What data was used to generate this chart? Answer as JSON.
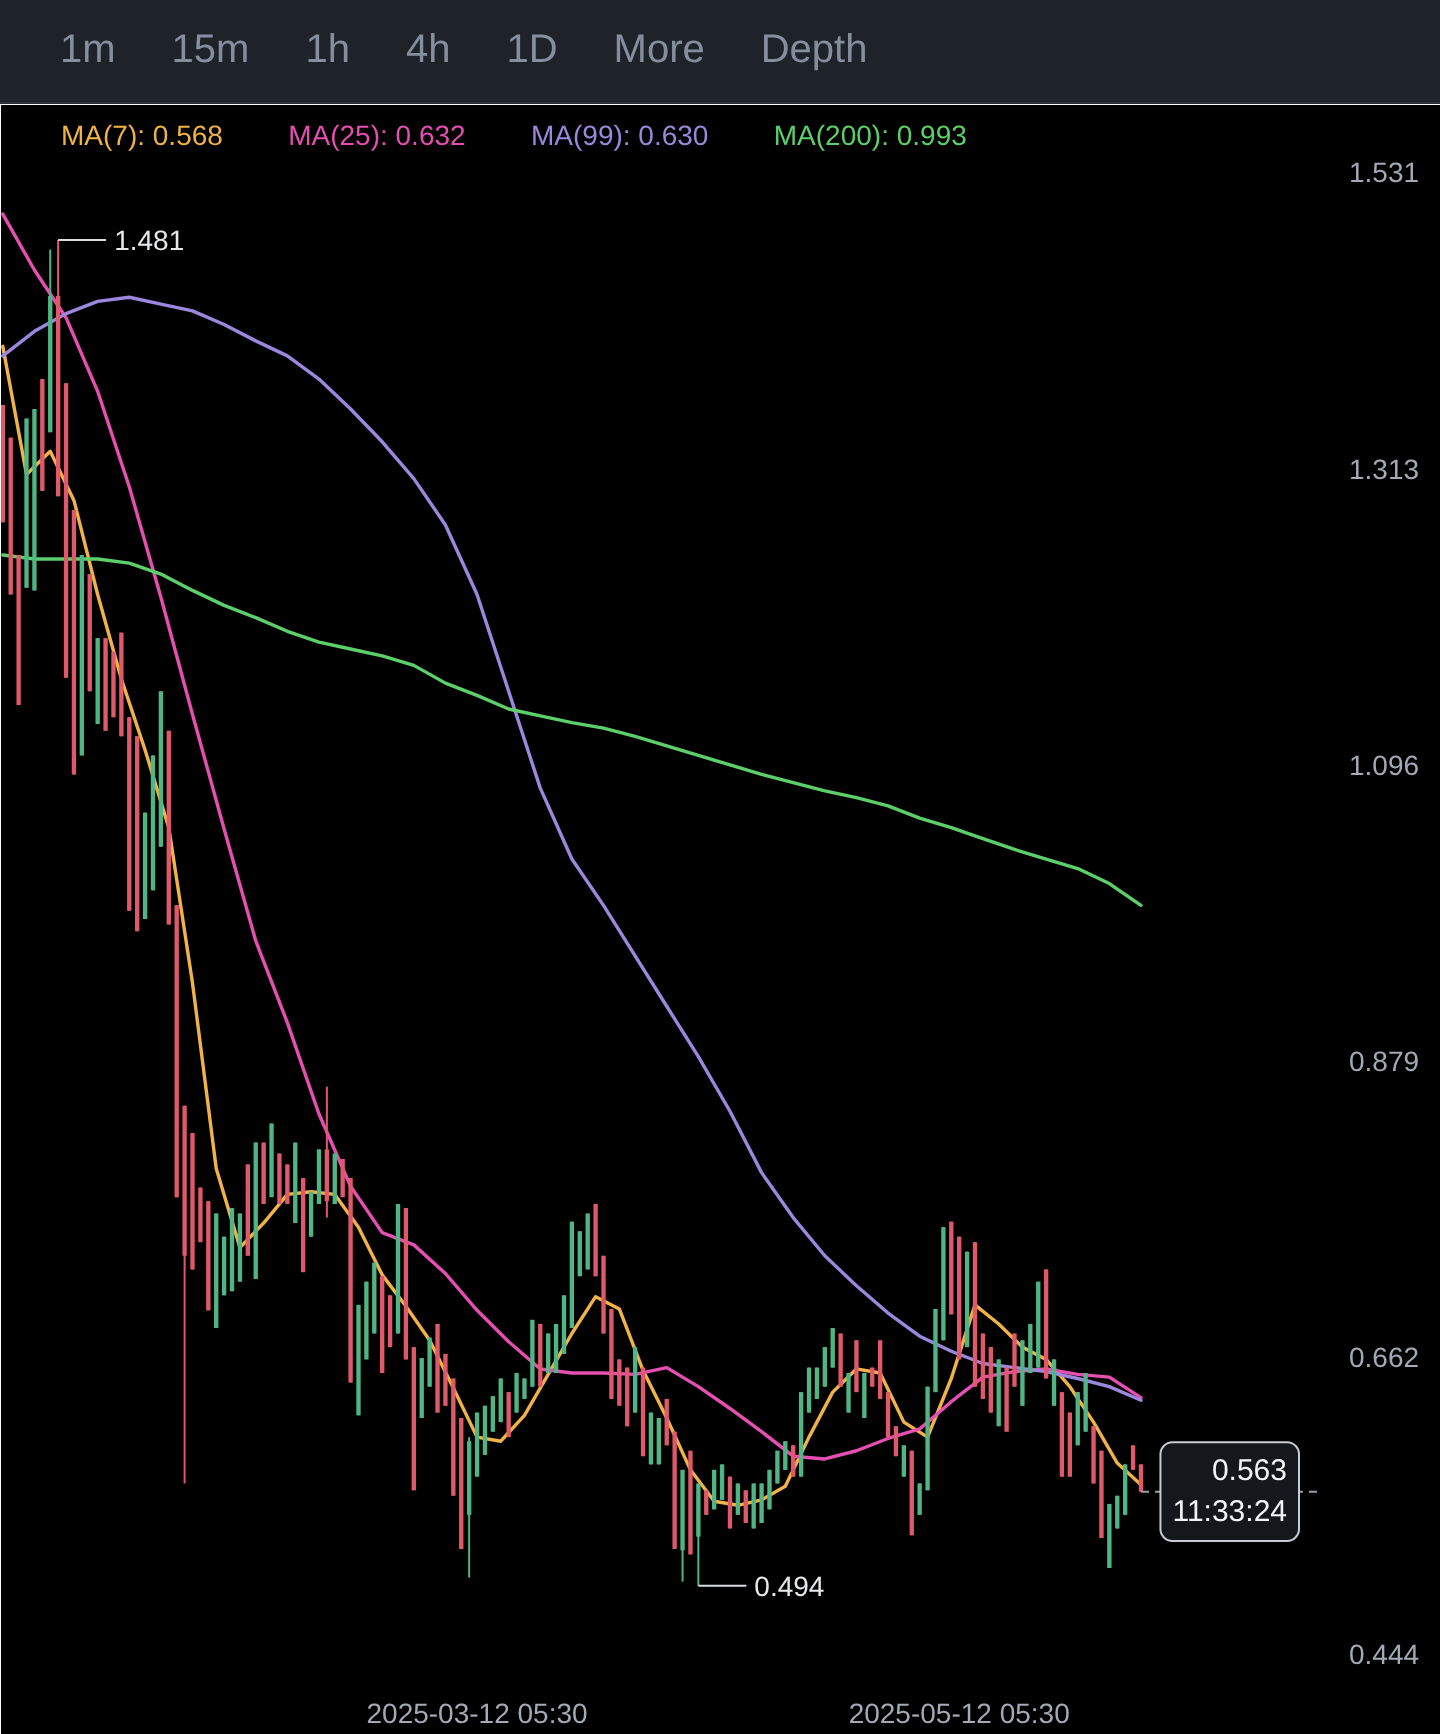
{
  "chart_data": {
    "type": "candlestick",
    "x": [
      "2025-01-11T05:30",
      "2025-01-12T05:30",
      "2025-01-13T05:30",
      "2025-01-14T05:30",
      "2025-01-15T05:30",
      "2025-01-16T05:30",
      "2025-01-17T05:30",
      "2025-01-18T05:30",
      "2025-01-19T05:30",
      "2025-01-20T05:30",
      "2025-01-21T05:30",
      "2025-01-22T05:30",
      "2025-01-23T05:30",
      "2025-01-24T05:30",
      "2025-01-25T05:30",
      "2025-01-26T05:30",
      "2025-01-27T05:30",
      "2025-01-28T05:30",
      "2025-01-29T05:30",
      "2025-01-30T05:30",
      "2025-01-31T05:30",
      "2025-02-01T05:30",
      "2025-02-02T05:30",
      "2025-02-03T05:30",
      "2025-02-04T05:30",
      "2025-02-05T05:30",
      "2025-02-06T05:30",
      "2025-02-07T05:30",
      "2025-02-08T05:30",
      "2025-02-09T05:30",
      "2025-02-10T05:30",
      "2025-02-11T05:30",
      "2025-02-12T05:30",
      "2025-02-13T05:30",
      "2025-02-14T05:30",
      "2025-02-15T05:30",
      "2025-02-16T05:30",
      "2025-02-17T05:30",
      "2025-02-18T05:30",
      "2025-02-19T05:30",
      "2025-02-20T05:30",
      "2025-02-21T05:30",
      "2025-02-22T05:30",
      "2025-02-23T05:30",
      "2025-02-24T05:30",
      "2025-02-25T05:30",
      "2025-02-26T05:30",
      "2025-02-27T05:30",
      "2025-02-28T05:30",
      "2025-03-01T05:30",
      "2025-03-02T05:30",
      "2025-03-03T05:30",
      "2025-03-04T05:30",
      "2025-03-05T05:30",
      "2025-03-06T05:30",
      "2025-03-07T05:30",
      "2025-03-08T05:30",
      "2025-03-09T05:30",
      "2025-03-10T05:30",
      "2025-03-11T05:30",
      "2025-03-12T05:30",
      "2025-03-13T05:30",
      "2025-03-14T05:30",
      "2025-03-15T05:30",
      "2025-03-16T05:30",
      "2025-03-17T05:30",
      "2025-03-18T05:30",
      "2025-03-19T05:30",
      "2025-03-20T05:30",
      "2025-03-21T05:30",
      "2025-03-22T05:30",
      "2025-03-23T05:30",
      "2025-03-24T05:30",
      "2025-03-25T05:30",
      "2025-03-26T05:30",
      "2025-03-27T05:30",
      "2025-03-28T05:30",
      "2025-03-29T05:30",
      "2025-03-30T05:30",
      "2025-03-31T05:30",
      "2025-04-01T05:30",
      "2025-04-02T05:30",
      "2025-04-03T05:30",
      "2025-04-04T05:30",
      "2025-04-05T05:30",
      "2025-04-06T05:30",
      "2025-04-07T05:30",
      "2025-04-08T05:30",
      "2025-04-09T05:30",
      "2025-04-10T05:30",
      "2025-04-11T05:30",
      "2025-04-12T05:30",
      "2025-04-13T05:30",
      "2025-04-14T05:30",
      "2025-04-15T05:30",
      "2025-04-16T05:30",
      "2025-04-17T05:30",
      "2025-04-18T05:30",
      "2025-04-19T05:30",
      "2025-04-20T05:30",
      "2025-04-21T05:30",
      "2025-04-22T05:30",
      "2025-04-23T05:30",
      "2025-04-24T05:30",
      "2025-04-25T05:30",
      "2025-04-26T05:30",
      "2025-04-27T05:30",
      "2025-04-28T05:30",
      "2025-04-29T05:30",
      "2025-04-30T05:30",
      "2025-05-01T05:30",
      "2025-05-02T05:30",
      "2025-05-03T05:30",
      "2025-05-04T05:30",
      "2025-05-05T05:30",
      "2025-05-06T05:30",
      "2025-05-07T05:30",
      "2025-05-08T05:30",
      "2025-05-09T05:30",
      "2025-05-10T05:30",
      "2025-05-11T05:30",
      "2025-05-12T05:30",
      "2025-05-13T05:30",
      "2025-05-14T05:30",
      "2025-05-15T05:30",
      "2025-05-16T05:30",
      "2025-05-17T05:30",
      "2025-05-18T05:30",
      "2025-05-19T05:30",
      "2025-05-20T05:30",
      "2025-05-21T05:30",
      "2025-05-22T05:30",
      "2025-05-23T05:30",
      "2025-05-24T05:30",
      "2025-05-25T05:30",
      "2025-05-26T05:30",
      "2025-05-27T05:30",
      "2025-05-28T05:30",
      "2025-05-29T05:30",
      "2025-05-30T05:30",
      "2025-05-31T05:30",
      "2025-06-01T05:30",
      "2025-06-02T05:30",
      "2025-06-03T05:30",
      "2025-06-04T05:30"
    ],
    "ohlc": [
      [
        1.36,
        1.36,
        1.274,
        1.274
      ],
      [
        1.336,
        1.336,
        1.221,
        1.221
      ],
      [
        1.25,
        1.25,
        1.14,
        1.14
      ],
      [
        1.226,
        1.35,
        1.226,
        1.35
      ],
      [
        1.224,
        1.357,
        1.224,
        1.357
      ],
      [
        1.379,
        1.379,
        1.297,
        1.297
      ],
      [
        1.34,
        1.474,
        1.34,
        1.44
      ],
      [
        1.44,
        1.481,
        1.293,
        1.293
      ],
      [
        1.376,
        1.376,
        1.16,
        1.16
      ],
      [
        1.283,
        1.283,
        1.089,
        1.089
      ],
      [
        1.103,
        1.25,
        1.103,
        1.25
      ],
      [
        1.236,
        1.236,
        1.15,
        1.15
      ],
      [
        1.126,
        1.189,
        1.126,
        1.189
      ],
      [
        1.189,
        1.189,
        1.121,
        1.121
      ],
      [
        1.179,
        1.179,
        1.131,
        1.131
      ],
      [
        1.193,
        1.193,
        1.117,
        1.117
      ],
      [
        1.131,
        1.131,
        0.989,
        0.989
      ],
      [
        1.117,
        1.117,
        0.974,
        0.974
      ],
      [
        0.983,
        1.061,
        0.983,
        1.061
      ],
      [
        1.004,
        1.103,
        1.004,
        1.103
      ],
      [
        1.036,
        1.15,
        1.036,
        1.15
      ],
      [
        1.121,
        1.121,
        0.979,
        0.979
      ],
      [
        0.993,
        0.993,
        0.779,
        0.779
      ],
      [
        0.846,
        0.846,
        0.569,
        0.736
      ],
      [
        0.826,
        0.826,
        0.726,
        0.726
      ],
      [
        0.786,
        0.786,
        0.746,
        0.746
      ],
      [
        0.776,
        0.776,
        0.696,
        0.696
      ],
      [
        0.683,
        0.767,
        0.683,
        0.767
      ],
      [
        0.707,
        0.75,
        0.707,
        0.75
      ],
      [
        0.71,
        0.771,
        0.71,
        0.771
      ],
      [
        0.717,
        0.767,
        0.717,
        0.767
      ],
      [
        0.803,
        0.803,
        0.736,
        0.736
      ],
      [
        0.719,
        0.819,
        0.719,
        0.819
      ],
      [
        0.819,
        0.819,
        0.774,
        0.774
      ],
      [
        0.779,
        0.833,
        0.779,
        0.833
      ],
      [
        0.811,
        0.811,
        0.774,
        0.774
      ],
      [
        0.803,
        0.803,
        0.774,
        0.774
      ],
      [
        0.76,
        0.819,
        0.76,
        0.819
      ],
      [
        0.793,
        0.793,
        0.724,
        0.724
      ],
      [
        0.75,
        0.783,
        0.75,
        0.783
      ],
      [
        0.774,
        0.814,
        0.774,
        0.814
      ],
      [
        0.814,
        0.86,
        0.764,
        0.776
      ],
      [
        0.774,
        0.811,
        0.774,
        0.811
      ],
      [
        0.807,
        0.807,
        0.779,
        0.779
      ],
      [
        0.793,
        0.793,
        0.643,
        0.643
      ],
      [
        0.619,
        0.7,
        0.619,
        0.7
      ],
      [
        0.66,
        0.717,
        0.66,
        0.717
      ],
      [
        0.679,
        0.731,
        0.679,
        0.731
      ],
      [
        0.721,
        0.721,
        0.65,
        0.65
      ],
      [
        0.707,
        0.707,
        0.669,
        0.669
      ],
      [
        0.679,
        0.774,
        0.679,
        0.774
      ],
      [
        0.771,
        0.771,
        0.66,
        0.66
      ],
      [
        0.669,
        0.669,
        0.564,
        0.564
      ],
      [
        0.617,
        0.661,
        0.617,
        0.661
      ],
      [
        0.64,
        0.676,
        0.64,
        0.676
      ],
      [
        0.686,
        0.686,
        0.621,
        0.621
      ],
      [
        0.664,
        0.664,
        0.626,
        0.626
      ],
      [
        0.646,
        0.646,
        0.56,
        0.56
      ],
      [
        0.617,
        0.617,
        0.521,
        0.521
      ],
      [
        0.546,
        0.603,
        0.5,
        0.6
      ],
      [
        0.574,
        0.621,
        0.574,
        0.621
      ],
      [
        0.59,
        0.626,
        0.59,
        0.626
      ],
      [
        0.607,
        0.633,
        0.607,
        0.633
      ],
      [
        0.614,
        0.646,
        0.614,
        0.646
      ],
      [
        0.636,
        0.636,
        0.603,
        0.603
      ],
      [
        0.621,
        0.65,
        0.621,
        0.65
      ],
      [
        0.631,
        0.646,
        0.631,
        0.646
      ],
      [
        0.64,
        0.689,
        0.64,
        0.689
      ],
      [
        0.686,
        0.686,
        0.64,
        0.64
      ],
      [
        0.65,
        0.679,
        0.65,
        0.679
      ],
      [
        0.65,
        0.686,
        0.65,
        0.686
      ],
      [
        0.664,
        0.707,
        0.664,
        0.707
      ],
      [
        0.683,
        0.761,
        0.683,
        0.761
      ],
      [
        0.721,
        0.754,
        0.721,
        0.754
      ],
      [
        0.726,
        0.767,
        0.726,
        0.767
      ],
      [
        0.774,
        0.774,
        0.721,
        0.721
      ],
      [
        0.736,
        0.736,
        0.679,
        0.679
      ],
      [
        0.697,
        0.697,
        0.631,
        0.631
      ],
      [
        0.66,
        0.66,
        0.626,
        0.626
      ],
      [
        0.654,
        0.654,
        0.611,
        0.611
      ],
      [
        0.621,
        0.669,
        0.621,
        0.669
      ],
      [
        0.654,
        0.654,
        0.589,
        0.589
      ],
      [
        0.583,
        0.621,
        0.583,
        0.621
      ],
      [
        0.583,
        0.617,
        0.583,
        0.617
      ],
      [
        0.631,
        0.631,
        0.597,
        0.597
      ],
      [
        0.607,
        0.607,
        0.521,
        0.521
      ],
      [
        0.52,
        0.579,
        0.497,
        0.579
      ],
      [
        0.593,
        0.593,
        0.517,
        0.517
      ],
      [
        0.53,
        0.569,
        0.494,
        0.569
      ],
      [
        0.564,
        0.564,
        0.546,
        0.546
      ],
      [
        0.55,
        0.579,
        0.55,
        0.579
      ],
      [
        0.557,
        0.583,
        0.557,
        0.583
      ],
      [
        0.574,
        0.574,
        0.536,
        0.536
      ],
      [
        0.546,
        0.569,
        0.546,
        0.569
      ],
      [
        0.564,
        0.564,
        0.54,
        0.54
      ],
      [
        0.536,
        0.569,
        0.536,
        0.569
      ],
      [
        0.54,
        0.569,
        0.54,
        0.569
      ],
      [
        0.55,
        0.579,
        0.55,
        0.579
      ],
      [
        0.569,
        0.593,
        0.569,
        0.593
      ],
      [
        0.579,
        0.6,
        0.579,
        0.6
      ],
      [
        0.597,
        0.597,
        0.574,
        0.574
      ],
      [
        0.574,
        0.636,
        0.574,
        0.636
      ],
      [
        0.621,
        0.654,
        0.621,
        0.654
      ],
      [
        0.631,
        0.654,
        0.631,
        0.654
      ],
      [
        0.64,
        0.669,
        0.64,
        0.669
      ],
      [
        0.654,
        0.683,
        0.654,
        0.683
      ],
      [
        0.679,
        0.679,
        0.64,
        0.64
      ],
      [
        0.621,
        0.65,
        0.621,
        0.65
      ],
      [
        0.674,
        0.674,
        0.636,
        0.636
      ],
      [
        0.617,
        0.65,
        0.617,
        0.65
      ],
      [
        0.654,
        0.654,
        0.64,
        0.64
      ],
      [
        0.674,
        0.674,
        0.631,
        0.631
      ],
      [
        0.636,
        0.636,
        0.603,
        0.603
      ],
      [
        0.611,
        0.611,
        0.589,
        0.589
      ],
      [
        0.574,
        0.597,
        0.574,
        0.597
      ],
      [
        0.593,
        0.593,
        0.531,
        0.531
      ],
      [
        0.546,
        0.569,
        0.546,
        0.569
      ],
      [
        0.564,
        0.64,
        0.564,
        0.64
      ],
      [
        0.636,
        0.697,
        0.636,
        0.697
      ],
      [
        0.674,
        0.757,
        0.674,
        0.757
      ],
      [
        0.761,
        0.761,
        0.693,
        0.693
      ],
      [
        0.75,
        0.75,
        0.66,
        0.66
      ],
      [
        0.669,
        0.739,
        0.669,
        0.739
      ],
      [
        0.746,
        0.746,
        0.64,
        0.64
      ],
      [
        0.679,
        0.679,
        0.631,
        0.631
      ],
      [
        0.669,
        0.669,
        0.621,
        0.621
      ],
      [
        0.611,
        0.66,
        0.611,
        0.66
      ],
      [
        0.654,
        0.654,
        0.607,
        0.607
      ],
      [
        0.679,
        0.679,
        0.64,
        0.64
      ],
      [
        0.626,
        0.674,
        0.626,
        0.674
      ],
      [
        0.65,
        0.686,
        0.65,
        0.686
      ],
      [
        0.654,
        0.717,
        0.654,
        0.717
      ],
      [
        0.726,
        0.726,
        0.646,
        0.646
      ],
      [
        0.626,
        0.66,
        0.626,
        0.66
      ],
      [
        0.636,
        0.636,
        0.574,
        0.574
      ],
      [
        0.621,
        0.621,
        0.574,
        0.574
      ],
      [
        0.597,
        0.636,
        0.597,
        0.636
      ],
      [
        0.607,
        0.65,
        0.607,
        0.65
      ],
      [
        0.611,
        0.611,
        0.569,
        0.569
      ],
      [
        0.593,
        0.593,
        0.529,
        0.529
      ],
      [
        0.507,
        0.554,
        0.507,
        0.554
      ],
      [
        0.536,
        0.56,
        0.536,
        0.56
      ],
      [
        0.546,
        0.583,
        0.546,
        0.583
      ],
      [
        0.597,
        0.597,
        0.579,
        0.579
      ],
      [
        0.583,
        0.583,
        0.563,
        0.563
      ]
    ],
    "colors": [
      "#e0596a",
      "#e0596a",
      "#e0596a",
      "#4fb584",
      "#4fb584",
      "#e0596a",
      "#4fb584",
      "#e0596a",
      "#e0596a",
      "#e0596a",
      "#4fb584",
      "#e0596a",
      "#4fb584",
      "#e0596a",
      "#e0596a",
      "#e0596a",
      "#e0596a",
      "#e0596a",
      "#4fb584",
      "#4fb584",
      "#4fb584",
      "#e0596a",
      "#e0596a",
      "#e0596a",
      "#e0596a",
      "#e0596a",
      "#e0596a",
      "#4fb584",
      "#4fb584",
      "#4fb584",
      "#4fb584",
      "#e0596a",
      "#4fb584",
      "#e0596a",
      "#4fb584",
      "#e0596a",
      "#e0596a",
      "#4fb584",
      "#e0596a",
      "#4fb584",
      "#4fb584",
      "#e0596a",
      "#4fb584",
      "#e0596a",
      "#e0596a",
      "#4fb584",
      "#4fb584",
      "#4fb584",
      "#e0596a",
      "#e0596a",
      "#4fb584",
      "#e0596a",
      "#e0596a",
      "#4fb584",
      "#4fb584",
      "#e0596a",
      "#e0596a",
      "#e0596a",
      "#e0596a",
      "#4fb584",
      "#4fb584",
      "#4fb584",
      "#4fb584",
      "#4fb584",
      "#e0596a",
      "#4fb584",
      "#4fb584",
      "#4fb584",
      "#e0596a",
      "#4fb584",
      "#4fb584",
      "#4fb584",
      "#4fb584",
      "#4fb584",
      "#4fb584",
      "#e0596a",
      "#e0596a",
      "#e0596a",
      "#e0596a",
      "#e0596a",
      "#4fb584",
      "#e0596a",
      "#4fb584",
      "#4fb584",
      "#e0596a",
      "#e0596a",
      "#4fb584",
      "#e0596a",
      "#4fb584",
      "#e0596a",
      "#4fb584",
      "#4fb584",
      "#e0596a",
      "#4fb584",
      "#e0596a",
      "#4fb584",
      "#4fb584",
      "#4fb584",
      "#4fb584",
      "#4fb584",
      "#e0596a",
      "#4fb584",
      "#4fb584",
      "#4fb584",
      "#4fb584",
      "#4fb584",
      "#e0596a",
      "#4fb584",
      "#e0596a",
      "#4fb584",
      "#e0596a",
      "#e0596a",
      "#e0596a",
      "#e0596a",
      "#4fb584",
      "#e0596a",
      "#4fb584",
      "#4fb584",
      "#4fb584",
      "#4fb584",
      "#e0596a",
      "#e0596a",
      "#4fb584",
      "#e0596a",
      "#e0596a",
      "#e0596a",
      "#4fb584",
      "#e0596a",
      "#e0596a",
      "#4fb584",
      "#4fb584",
      "#4fb584",
      "#e0596a",
      "#4fb584",
      "#e0596a",
      "#e0596a",
      "#4fb584",
      "#4fb584",
      "#e0596a",
      "#e0596a",
      "#4fb584",
      "#4fb584",
      "#4fb584",
      "#e0596a",
      "#e0596a"
    ],
    "series": [
      {
        "type": "line",
        "name": "MA(7): 0.568",
        "color": "#f0b347",
        "x": [
          "2025-01-11T05:30",
          "2025-01-14T05:30",
          "2025-01-17T05:30",
          "2025-01-20T05:30",
          "2025-01-23T05:30",
          "2025-01-26T05:30",
          "2025-01-29T05:30",
          "2025-02-01T05:30",
          "2025-02-04T05:30",
          "2025-02-07T05:30",
          "2025-02-10T05:30",
          "2025-02-13T05:30",
          "2025-02-16T05:30",
          "2025-02-19T05:30",
          "2025-02-22T05:30",
          "2025-02-25T05:30",
          "2025-02-28T05:30",
          "2025-03-03T05:30",
          "2025-03-06T05:30",
          "2025-03-09T05:30",
          "2025-03-12T05:30",
          "2025-03-15T05:30",
          "2025-03-18T05:30",
          "2025-03-21T05:30",
          "2025-03-24T05:30",
          "2025-03-27T05:30",
          "2025-03-30T05:30",
          "2025-04-02T05:30",
          "2025-04-05T05:30",
          "2025-04-08T05:30",
          "2025-04-11T05:30",
          "2025-04-14T05:30",
          "2025-04-17T05:30",
          "2025-04-20T05:30",
          "2025-04-23T05:30",
          "2025-04-26T05:30",
          "2025-04-29T05:30",
          "2025-05-02T05:30",
          "2025-05-05T05:30",
          "2025-05-08T05:30",
          "2025-05-11T05:30",
          "2025-05-14T05:30",
          "2025-05-17T05:30",
          "2025-05-20T05:30",
          "2025-05-23T05:30",
          "2025-05-26T05:30",
          "2025-05-29T05:30",
          "2025-06-01T05:30",
          "2025-06-04T05:30"
        ],
        "values": [
          1.403,
          1.309,
          1.326,
          1.29,
          1.221,
          1.159,
          1.107,
          1.05,
          0.936,
          0.8,
          0.742,
          0.76,
          0.781,
          0.783,
          0.781,
          0.757,
          0.722,
          0.699,
          0.674,
          0.639,
          0.603,
          0.6,
          0.619,
          0.649,
          0.679,
          0.706,
          0.697,
          0.652,
          0.617,
          0.579,
          0.556,
          0.553,
          0.557,
          0.567,
          0.603,
          0.636,
          0.653,
          0.65,
          0.614,
          0.603,
          0.646,
          0.7,
          0.686,
          0.669,
          0.66,
          0.64,
          0.614,
          0.584,
          0.568
        ]
      },
      {
        "type": "line",
        "name": "MA(25): 0.632",
        "color": "#e44fb1",
        "x": [
          "2025-01-11T05:30",
          "2025-01-15T05:30",
          "2025-01-19T05:30",
          "2025-01-23T05:30",
          "2025-01-27T05:30",
          "2025-01-31T05:30",
          "2025-02-04T05:30",
          "2025-02-08T05:30",
          "2025-02-12T05:30",
          "2025-02-16T05:30",
          "2025-02-20T05:30",
          "2025-02-24T05:30",
          "2025-02-28T05:30",
          "2025-03-04T05:30",
          "2025-03-08T05:30",
          "2025-03-12T05:30",
          "2025-03-16T05:30",
          "2025-03-20T05:30",
          "2025-03-24T05:30",
          "2025-03-28T05:30",
          "2025-04-01T05:30",
          "2025-04-05T05:30",
          "2025-04-09T05:30",
          "2025-04-13T05:30",
          "2025-04-17T05:30",
          "2025-04-21T05:30",
          "2025-04-25T05:30",
          "2025-04-29T05:30",
          "2025-05-03T05:30",
          "2025-05-07T05:30",
          "2025-05-11T05:30",
          "2025-05-15T05:30",
          "2025-05-19T05:30",
          "2025-05-23T05:30",
          "2025-05-27T05:30",
          "2025-05-31T05:30",
          "2025-06-04T05:30"
        ],
        "values": [
          1.5,
          1.459,
          1.424,
          1.37,
          1.3,
          1.219,
          1.133,
          1.049,
          0.967,
          0.907,
          0.84,
          0.787,
          0.753,
          0.744,
          0.723,
          0.696,
          0.673,
          0.653,
          0.65,
          0.65,
          0.649,
          0.654,
          0.64,
          0.624,
          0.607,
          0.589,
          0.587,
          0.593,
          0.602,
          0.609,
          0.629,
          0.647,
          0.651,
          0.653,
          0.649,
          0.647,
          0.632
        ]
      },
      {
        "type": "line",
        "name": "MA(99): 0.630",
        "color": "#9b87dc",
        "x": [
          "2025-01-11T05:30",
          "2025-01-15T05:30",
          "2025-01-19T05:30",
          "2025-01-23T05:30",
          "2025-01-27T05:30",
          "2025-01-31T05:30",
          "2025-02-04T05:30",
          "2025-02-08T05:30",
          "2025-02-12T05:30",
          "2025-02-16T05:30",
          "2025-02-20T05:30",
          "2025-02-24T05:30",
          "2025-02-28T05:30",
          "2025-03-04T05:30",
          "2025-03-08T05:30",
          "2025-03-12T05:30",
          "2025-03-16T05:30",
          "2025-03-20T05:30",
          "2025-03-24T05:30",
          "2025-03-28T05:30",
          "2025-04-01T05:30",
          "2025-04-05T05:30",
          "2025-04-09T05:30",
          "2025-04-13T05:30",
          "2025-04-17T05:30",
          "2025-04-21T05:30",
          "2025-04-25T05:30",
          "2025-04-29T05:30",
          "2025-05-03T05:30",
          "2025-05-07T05:30",
          "2025-05-11T05:30",
          "2025-05-15T05:30",
          "2025-05-19T05:30",
          "2025-05-23T05:30",
          "2025-05-27T05:30",
          "2025-05-31T05:30",
          "2025-06-04T05:30"
        ],
        "values": [
          1.396,
          1.414,
          1.427,
          1.436,
          1.439,
          1.434,
          1.429,
          1.419,
          1.407,
          1.396,
          1.379,
          1.357,
          1.333,
          1.306,
          1.272,
          1.221,
          1.15,
          1.079,
          1.027,
          0.993,
          0.956,
          0.919,
          0.882,
          0.842,
          0.797,
          0.764,
          0.736,
          0.714,
          0.694,
          0.677,
          0.666,
          0.657,
          0.654,
          0.651,
          0.646,
          0.64,
          0.63
        ]
      },
      {
        "type": "line",
        "name": "MA(200): 0.993",
        "color": "#5ccf6b",
        "x": [
          "2025-01-11T05:30",
          "2025-01-15T05:30",
          "2025-01-19T05:30",
          "2025-01-23T05:30",
          "2025-01-27T05:30",
          "2025-01-31T05:30",
          "2025-02-04T05:30",
          "2025-02-08T05:30",
          "2025-02-12T05:30",
          "2025-02-16T05:30",
          "2025-02-20T05:30",
          "2025-02-24T05:30",
          "2025-02-28T05:30",
          "2025-03-04T05:30",
          "2025-03-08T05:30",
          "2025-03-12T05:30",
          "2025-03-16T05:30",
          "2025-03-20T05:30",
          "2025-03-24T05:30",
          "2025-03-28T05:30",
          "2025-04-01T05:30",
          "2025-04-05T05:30",
          "2025-04-09T05:30",
          "2025-04-13T05:30",
          "2025-04-17T05:30",
          "2025-04-21T05:30",
          "2025-04-25T05:30",
          "2025-04-29T05:30",
          "2025-05-03T05:30",
          "2025-05-07T05:30",
          "2025-05-11T05:30",
          "2025-05-15T05:30",
          "2025-05-19T05:30",
          "2025-05-23T05:30",
          "2025-05-27T05:30",
          "2025-05-31T05:30",
          "2025-06-04T05:30"
        ],
        "values": [
          1.25,
          1.247,
          1.247,
          1.247,
          1.244,
          1.236,
          1.224,
          1.213,
          1.204,
          1.194,
          1.186,
          1.181,
          1.176,
          1.169,
          1.156,
          1.147,
          1.137,
          1.132,
          1.127,
          1.123,
          1.117,
          1.11,
          1.103,
          1.096,
          1.089,
          1.083,
          1.077,
          1.072,
          1.066,
          1.057,
          1.05,
          1.042,
          1.034,
          1.027,
          1.02,
          1.009,
          0.993
        ]
      }
    ],
    "xlim": [
      "2025-01-11T00:00",
      "2025-06-26T12:00"
    ],
    "xticks": [
      {
        "value": "2025-03-12T05:30",
        "label": "2025-03-12 05:30"
      },
      {
        "value": "2025-05-12T05:30",
        "label": "2025-05-12 05:30"
      }
    ],
    "ylim": [
      0.43,
      1.58
    ],
    "yticks": [
      0.444,
      0.662,
      0.879,
      1.096,
      1.313,
      1.531
    ],
    "legend": "top left",
    "annotations": [
      "1m",
      "15m",
      "1h",
      "4h",
      "1D",
      "More",
      "Depth",
      {
        "text": "1.481",
        "x": "2025-01-18T05:30",
        "y": 1.481
      },
      {
        "text": "0.494",
        "x": "2025-04-09T05:30",
        "y": 0.494
      }
    ],
    "ref_lines": [
      {
        "axis": "y",
        "value": 0.563,
        "label": "0.563\n11:33:24",
        "line_style": "dashed",
        "color": "#9aa0a8"
      }
    ]
  }
}
